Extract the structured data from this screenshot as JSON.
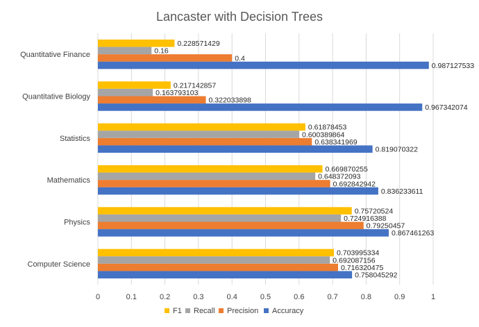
{
  "chart_data": {
    "type": "bar",
    "orientation": "horizontal",
    "title": "Lancaster with Decision Trees",
    "xlabel": "",
    "ylabel": "",
    "xlim": [
      0,
      1
    ],
    "x_ticks": [
      "0",
      "0.1",
      "0.2",
      "0.3",
      "0.4",
      "0.5",
      "0.6",
      "0.7",
      "0.8",
      "0.9",
      "1"
    ],
    "grid": "vertical",
    "legend_position": "bottom",
    "categories": [
      "Computer Science",
      "Physics",
      "Mathematics",
      "Statistics",
      "Quantitative Biology",
      "Quantitative Finance"
    ],
    "series": [
      {
        "name": "Accuracy",
        "color": "#4472C4",
        "values": [
          0.758045292,
          0.867461263,
          0.836233611,
          0.819070322,
          0.967342074,
          0.987127533
        ],
        "labels": [
          "0.758045292",
          "0.867461263",
          "0.836233611",
          "0.819070322",
          "0.967342074",
          "0.987127533"
        ]
      },
      {
        "name": "Precision",
        "color": "#ED7D31",
        "values": [
          0.716320475,
          0.79250457,
          0.692842942,
          0.638341969,
          0.322033898,
          0.4
        ],
        "labels": [
          "0.716320475",
          "0.79250457",
          "0.692842942",
          "0.638341969",
          "0.322033898",
          "0.4"
        ]
      },
      {
        "name": "Recall",
        "color": "#A5A5A5",
        "values": [
          0.692087156,
          0.724916388,
          0.648372093,
          0.600389864,
          0.163793103,
          0.16
        ],
        "labels": [
          "0.692087156",
          "0.724916388",
          "0.648372093",
          "0.600389864",
          "0.163793103",
          "0.16"
        ]
      },
      {
        "name": "F1",
        "color": "#FFC000",
        "values": [
          0.703995334,
          0.75720524,
          0.669870255,
          0.61878453,
          0.217142857,
          0.228571429
        ],
        "labels": [
          "0.703995334",
          "0.75720524",
          "0.669870255",
          "0.61878453",
          "0.217142857",
          "0.228571429"
        ]
      }
    ],
    "legend_order": [
      "F1",
      "Recall",
      "Precision",
      "Accuracy"
    ]
  }
}
